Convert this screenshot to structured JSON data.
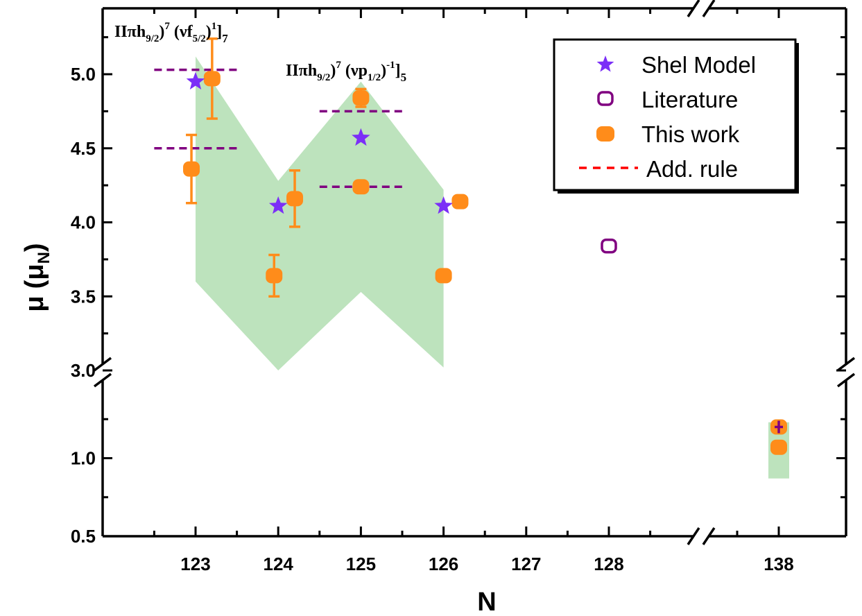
{
  "chart_data": {
    "type": "scatter",
    "title": "",
    "xlabel": "N",
    "ylabel": "μ (μN)",
    "ylabel_main": "μ",
    "ylabel_open": "(μ",
    "ylabel_sub": "N",
    "ylabel_close": ")",
    "x_tick_labels": [
      "123",
      "124",
      "125",
      "126",
      "127",
      "128",
      "138"
    ],
    "y_tick_labels_upper": [
      "3.0",
      "3.5",
      "4.0",
      "4.5",
      "5.0"
    ],
    "y_tick_labels_lower": [
      "0.5",
      "1.0"
    ],
    "axis_breaks": {
      "x": [
        128.7,
        137.3
      ],
      "y": [
        1.3,
        3.0
      ]
    },
    "ylim": [
      0.5,
      5.35
    ],
    "xlim": [
      122.2,
      138.6
    ],
    "grid": false,
    "legend_position": "top-right",
    "legend": [
      {
        "label": "Shel Model",
        "marker": "star",
        "color": "#7B2FF7"
      },
      {
        "label": "Literature",
        "marker": "open-square",
        "color": "#800080"
      },
      {
        "label": "This work",
        "marker": "filled-rounded-square",
        "color": "#FF8C1A"
      },
      {
        "label": "Add. rule",
        "marker": "dashed-line",
        "color": "#FF0000"
      }
    ],
    "series": [
      {
        "name": "Shel Model",
        "points": [
          {
            "x": 123,
            "y": 4.95
          },
          {
            "x": 124,
            "y": 4.11
          },
          {
            "x": 125,
            "y": 4.57
          },
          {
            "x": 126,
            "y": 4.11
          }
        ]
      },
      {
        "name": "Literature",
        "points": [
          {
            "x": 128,
            "y": 3.84
          },
          {
            "x": 138,
            "y": 1.2
          }
        ]
      },
      {
        "name": "This work",
        "points": [
          {
            "x": 123,
            "y": 4.36,
            "yerr": 0.23,
            "dx": -0.05
          },
          {
            "x": 123,
            "y": 4.97,
            "yerr": 0.27,
            "dx": 0.2
          },
          {
            "x": 124,
            "y": 3.64,
            "yerr": 0.14,
            "dx": -0.05
          },
          {
            "x": 124,
            "y": 4.16,
            "yerr": 0.19,
            "dx": 0.2
          },
          {
            "x": 125,
            "y": 4.84,
            "yerr": 0.06,
            "dx": 0
          },
          {
            "x": 125,
            "y": 4.24,
            "yerr": 0,
            "dx": 0
          },
          {
            "x": 126,
            "y": 3.64,
            "yerr": 0,
            "dx": 0
          },
          {
            "x": 126,
            "y": 4.14,
            "yerr": 0,
            "dx": 0.2
          },
          {
            "x": 138,
            "y": 1.2,
            "yerr": 0,
            "dx": 0
          },
          {
            "x": 138,
            "y": 1.07,
            "yerr": 0,
            "dx": 0
          }
        ]
      },
      {
        "name": "Add. rule",
        "segments": [
          {
            "x": [
              122.5,
              123.5
            ],
            "y": 5.03
          },
          {
            "x": [
              122.5,
              123.5
            ],
            "y": 4.5
          },
          {
            "x": [
              124.5,
              125.5
            ],
            "y": 4.75
          },
          {
            "x": [
              124.5,
              125.5
            ],
            "y": 4.24
          }
        ]
      }
    ],
    "uncertainty_band": {
      "upper": [
        {
          "x": 123,
          "y": 5.12
        },
        {
          "x": 124,
          "y": 4.28
        },
        {
          "x": 125,
          "y": 4.95
        },
        {
          "x": 126,
          "y": 4.22
        }
      ],
      "lower": [
        {
          "x": 123,
          "y": 3.6
        },
        {
          "x": 124,
          "y": 3.0
        },
        {
          "x": 125,
          "y": 3.53
        },
        {
          "x": 126,
          "y": 3.02
        }
      ],
      "n138": {
        "x": 138,
        "y_low": 0.87,
        "y_high": 1.23
      },
      "color": "#BDE3BD"
    },
    "annotations": [
      {
        "base": "IIπh",
        "sub1": "9/2",
        "mid": ")",
        "sup1": "7",
        "mid2": " (νf",
        "sub2": "5/2",
        "mid3": ")",
        "sup2": "1",
        "end": "]",
        "endsub": "7"
      },
      {
        "base": "IIπh",
        "sub1": "9/2",
        "mid": ")",
        "sup1": "7",
        "mid2": " (νp",
        "sub2": "1/2",
        "mid3": ")",
        "sup2": "-1",
        "end": "]",
        "endsub": "5"
      }
    ]
  }
}
